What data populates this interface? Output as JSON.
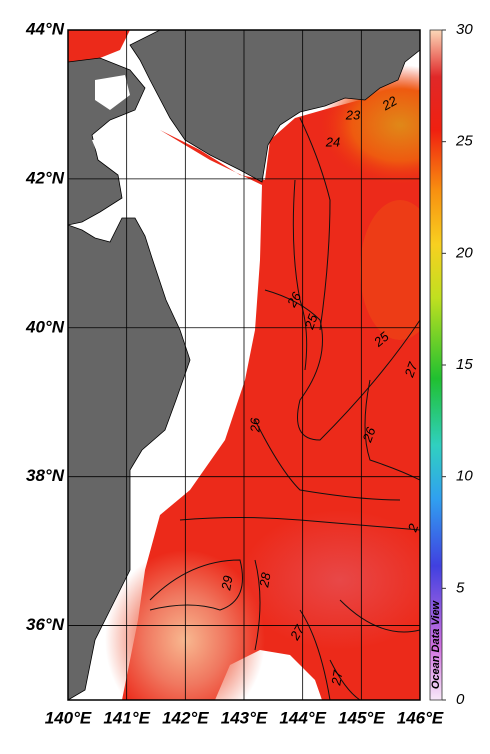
{
  "map": {
    "lat_range": [
      35,
      44
    ],
    "lon_range": [
      140,
      146
    ],
    "lat_ticks": [
      {
        "value": 44,
        "label": "44°N"
      },
      {
        "value": 42,
        "label": "42°N"
      },
      {
        "value": 40,
        "label": "40°N"
      },
      {
        "value": 38,
        "label": "38°N"
      },
      {
        "value": 36,
        "label": "36°N"
      }
    ],
    "lon_ticks": [
      {
        "value": 140,
        "label": "140°E"
      },
      {
        "value": 141,
        "label": "141°E"
      },
      {
        "value": 142,
        "label": "142°E"
      },
      {
        "value": 143,
        "label": "143°E"
      },
      {
        "value": 144,
        "label": "144°E"
      },
      {
        "value": 145,
        "label": "145°E"
      },
      {
        "value": 146,
        "label": "146°E"
      }
    ],
    "contour_labels": [
      "22",
      "23",
      "24",
      "26",
      "25",
      "25",
      "27",
      "26",
      "26",
      "2",
      "29",
      "28",
      "27",
      "27"
    ]
  },
  "colorbar": {
    "range": [
      0,
      30
    ],
    "ticks": [
      0,
      5,
      10,
      15,
      20,
      25,
      30
    ]
  },
  "watermark": "Ocean Data View"
}
